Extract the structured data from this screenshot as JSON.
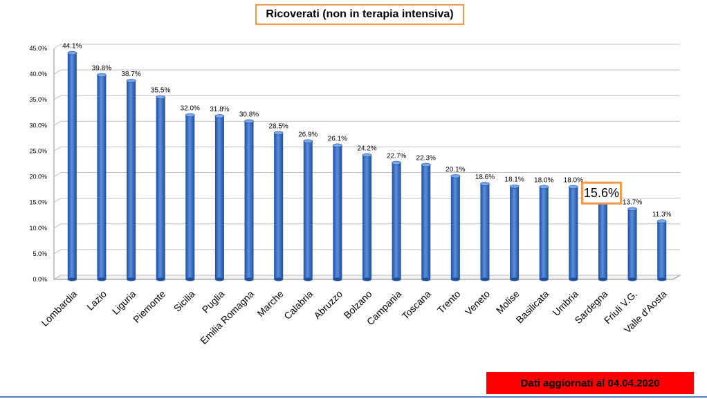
{
  "header": {
    "title": "Ricoverati (non in terapia intensiva)"
  },
  "footer": {
    "update_note": "Dati aggiornati al 04.04.2020"
  },
  "colors": {
    "bar": "#3a6fc4",
    "bar_dark": "#1f4e9b",
    "highlight_border": "#f79646",
    "banner": "#ff0000"
  },
  "chart_data": {
    "type": "bar",
    "title": "Ricoverati (non in terapia intensiva)",
    "ylim": [
      0,
      45
    ],
    "y_ticks": [
      "0.0%",
      "5.0%",
      "10.0%",
      "15.0%",
      "20.0%",
      "25.0%",
      "30.0%",
      "35.0%",
      "40.0%",
      "45.0%"
    ],
    "grid": true,
    "categories": [
      "Lombardia",
      "Lazio",
      "Liguria",
      "Piemonte",
      "Sicilia",
      "Puglia",
      "Emilia Romagna",
      "Marche",
      "Calabria",
      "Abruzzo",
      "Bolzano",
      "Campania",
      "Toscana",
      "Trento",
      "Veneto",
      "Molise",
      "Basilicata",
      "Umbria",
      "Sardegna",
      "Friuli V.G.",
      "Valle d'Aosta"
    ],
    "values": [
      44.1,
      39.8,
      38.7,
      35.5,
      32.0,
      31.8,
      30.8,
      28.5,
      26.9,
      26.1,
      24.2,
      22.7,
      22.3,
      20.1,
      18.6,
      18.1,
      18.0,
      18.0,
      15.6,
      13.7,
      11.3
    ],
    "labels": [
      "44.1%",
      "39.8%",
      "38.7%",
      "35.5%",
      "32.0%",
      "31.8%",
      "30.8%",
      "28.5%",
      "26.9%",
      "26.1%",
      "24.2%",
      "22.7%",
      "22.3%",
      "20.1%",
      "18.6%",
      "18.1%",
      "18.0%",
      "18.0%",
      "15.6%",
      "13.7%",
      "11.3%"
    ],
    "highlighted_category": "Sardegna"
  }
}
